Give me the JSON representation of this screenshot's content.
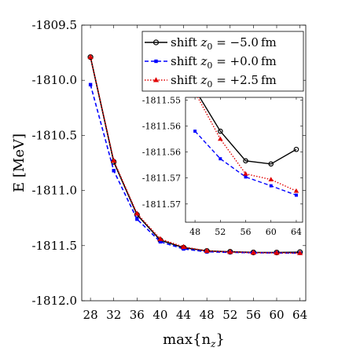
{
  "chart_data": {
    "type": "line",
    "xlabel": "max{n_z}",
    "ylabel": "E [MeV]",
    "xlim": [
      26.5,
      65
    ],
    "ylim": [
      -1812.0,
      -1809.5
    ],
    "xticks": [
      28,
      32,
      36,
      40,
      44,
      48,
      52,
      56,
      60,
      64
    ],
    "yticks": [
      -1809.5,
      -1810.0,
      -1810.5,
      -1811.0,
      -1811.5,
      -1812.0
    ],
    "ytick_labels": [
      "-1809.5",
      "-1810.0",
      "-1810.5",
      "-1811.0",
      "-1811.5",
      "-1812.0"
    ],
    "legend_position": "top-right",
    "x": [
      28,
      32,
      36,
      40,
      44,
      48,
      52,
      56,
      60,
      64
    ],
    "series": [
      {
        "name": "shift z0 = −5.0 fm",
        "label_parts": {
          "prefix": "shift ",
          "var": "z",
          "sub": "0",
          "value": " = −5.0",
          "unit": "fm"
        },
        "color": "#000000",
        "marker": "open-circle",
        "dash": "solid",
        "values": [
          -1809.79,
          -1810.74,
          -1811.22,
          -1811.45,
          -1811.518,
          -1811.548,
          -1811.556,
          -1811.5617,
          -1811.5623,
          -1811.5595
        ]
      },
      {
        "name": "shift z0 = +0.0 fm",
        "label_parts": {
          "prefix": "shift ",
          "var": "z",
          "sub": "0",
          "value": " = +0.0",
          "unit": "fm"
        },
        "color": "#0000ff",
        "marker": "square",
        "dash": "dashed",
        "values": [
          -1810.04,
          -1810.82,
          -1811.26,
          -1811.465,
          -1811.53,
          -1811.556,
          -1811.5613,
          -1811.5648,
          -1811.5665,
          -1811.5683
        ]
      },
      {
        "name": "shift z0 = +2.5 fm",
        "label_parts": {
          "prefix": "shift ",
          "var": "z",
          "sub": "0",
          "value": " = +2.5",
          "unit": "fm"
        },
        "color": "#e00000",
        "marker": "triangle",
        "dash": "dotted",
        "values": [
          -1809.79,
          -1810.73,
          -1811.21,
          -1811.44,
          -1811.512,
          -1811.5485,
          -1811.5575,
          -1811.5642,
          -1811.5653,
          -1811.5675
        ]
      }
    ],
    "inset": {
      "xlim": [
        46.5,
        65
      ],
      "ylim": [
        -1811.5735,
        -1811.5495
      ],
      "xticks": [
        48,
        52,
        56,
        60,
        64
      ],
      "yticks": [
        -1811.55,
        -1811.555,
        -1811.56,
        -1811.565,
        -1811.57
      ],
      "ytick_labels": [
        "-1811.55",
        "-1811.56",
        "-1811.56",
        "-1811.57",
        "-1811.57"
      ]
    }
  }
}
